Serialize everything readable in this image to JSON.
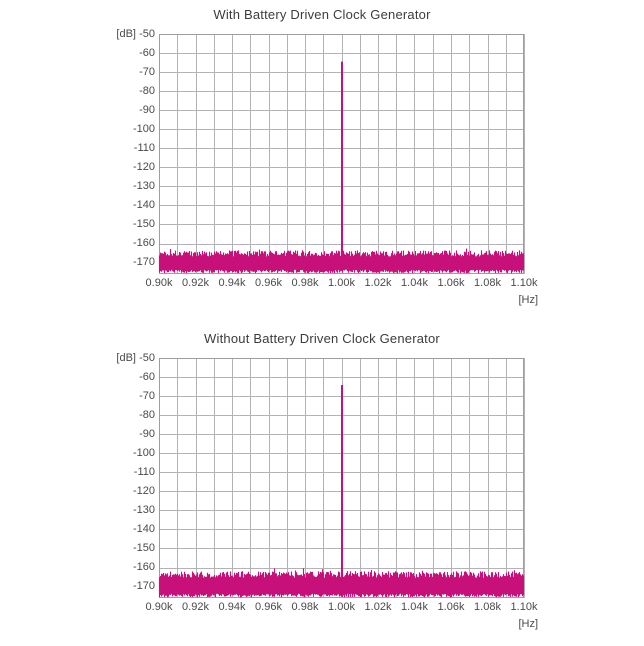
{
  "figure": {
    "background": "#ffffff"
  },
  "colors": {
    "trace": "#c8107a",
    "grid": "#b3b3b3",
    "border": "#9e9e9e",
    "title_text": "#3c3c3c",
    "tick_text": "#4a4a4a"
  },
  "chart_data": [
    {
      "type": "line",
      "title": "With Battery Driven Clock Generator",
      "y_axis": {
        "unit_label": "[dB]",
        "tick_labels": [
          "-50",
          "-60",
          "-70",
          "-80",
          "-90",
          "-100",
          "-110",
          "-120",
          "-130",
          "-140",
          "-150",
          "-160",
          "-170"
        ],
        "top_db": -50,
        "bottom_db": -176,
        "grid_step_db": 10
      },
      "x_axis": {
        "unit_label": "[Hz]",
        "tick_labels": [
          "0.90k",
          "0.92k",
          "0.94k",
          "0.96k",
          "0.98k",
          "1.00k",
          "1.02k",
          "1.04k",
          "1.06k",
          "1.08k",
          "1.10k"
        ],
        "tick_hz": [
          900,
          920,
          940,
          960,
          980,
          1000,
          1020,
          1040,
          1060,
          1080,
          1100
        ],
        "min_hz": 900,
        "max_hz": 1100,
        "grid_step_hz": 10
      },
      "peak": {
        "freq_hz": 1000,
        "freq_label": "1.00k",
        "level_db": -64.5
      },
      "noise_floor": {
        "band_top_mean_db": -165.2,
        "band_top_jitter_db": 1.6,
        "spike_probability": 0.06,
        "spike_extra_db": 2.4,
        "band_bottom_db": -173.8,
        "band_bottom_jitter_db": 1.8
      },
      "seed": 1337
    },
    {
      "type": "line",
      "title": "Without Battery Driven Clock Generator",
      "y_axis": {
        "unit_label": "[dB]",
        "tick_labels": [
          "-50",
          "-60",
          "-70",
          "-80",
          "-90",
          "-100",
          "-110",
          "-120",
          "-130",
          "-140",
          "-150",
          "-160",
          "-170"
        ],
        "top_db": -50,
        "bottom_db": -176,
        "grid_step_db": 10
      },
      "x_axis": {
        "unit_label": "[Hz]",
        "tick_labels": [
          "0.90k",
          "0.92k",
          "0.94k",
          "0.96k",
          "0.98k",
          "1.00k",
          "1.02k",
          "1.04k",
          "1.06k",
          "1.08k",
          "1.10k"
        ],
        "tick_hz": [
          900,
          920,
          940,
          960,
          980,
          1000,
          1020,
          1040,
          1060,
          1080,
          1100
        ],
        "min_hz": 900,
        "max_hz": 1100,
        "grid_step_hz": 10
      },
      "peak": {
        "freq_hz": 1000,
        "freq_label": "1.00k",
        "level_db": -64.2
      },
      "noise_floor": {
        "band_top_mean_db": -163.6,
        "band_top_jitter_db": 1.7,
        "spike_probability": 0.06,
        "spike_extra_db": 2.4,
        "band_bottom_db": -173.8,
        "band_bottom_jitter_db": 1.8
      },
      "seed": 9042
    }
  ]
}
